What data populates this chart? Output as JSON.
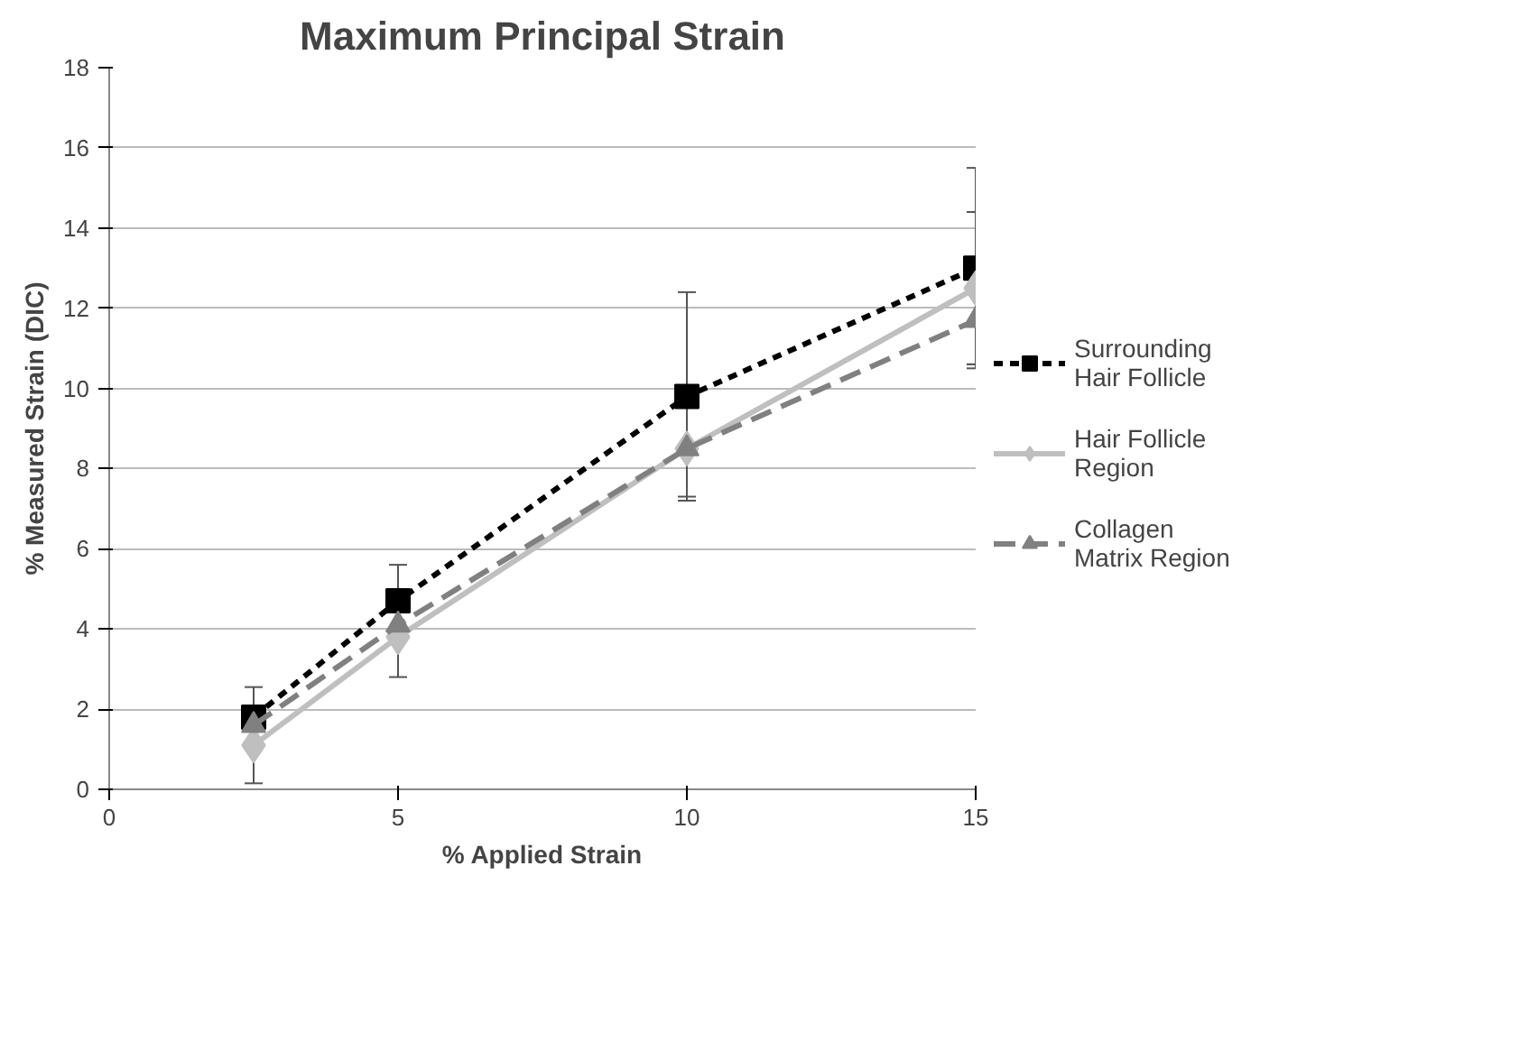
{
  "chart_data": {
    "type": "line",
    "title": "Maximum Principal Strain",
    "xlabel": "% Applied Strain",
    "ylabel": "% Measured Strain (DIC)",
    "x": [
      2.5,
      5,
      10,
      15
    ],
    "xlim": [
      0,
      15
    ],
    "xticks": [
      0,
      5,
      10,
      15
    ],
    "ylim": [
      0,
      18
    ],
    "yticks": [
      0,
      2,
      4,
      6,
      8,
      10,
      12,
      14,
      16,
      18
    ],
    "grid": "y",
    "legend": "right",
    "series": [
      {
        "name": "Surrounding Hair Follicle",
        "color": "#000000",
        "values": [
          1.8,
          4.7,
          9.8,
          13.0
        ],
        "errors": [
          0.75,
          0.9,
          2.6,
          2.5
        ],
        "marker": "square",
        "line_style": "dotted"
      },
      {
        "name": "Hair Follicle Region",
        "color": "#bfbfbf",
        "values": [
          1.1,
          3.8,
          8.5,
          12.5
        ],
        "errors": [
          0.95,
          1.0,
          null,
          1.9
        ],
        "marker": "diamond",
        "line_style": "solid"
      },
      {
        "name": "Collagen Matrix Region",
        "color": "#808080",
        "values": [
          1.6,
          4.1,
          8.5,
          11.7
        ],
        "errors": [
          null,
          null,
          1.2,
          1.1
        ],
        "marker": "triangle",
        "line_style": "dashed"
      }
    ]
  }
}
